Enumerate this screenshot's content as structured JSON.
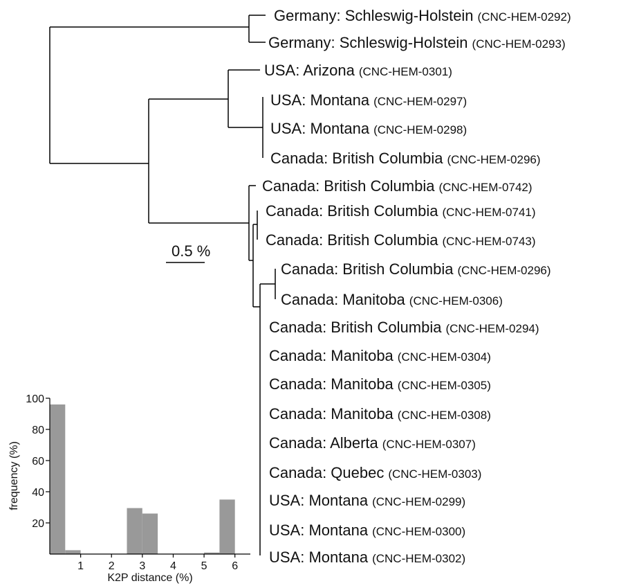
{
  "tree": {
    "scale_bar_label": "0.5 %",
    "leaves": [
      {
        "location": "Germany: Schleswig-Holstein",
        "code": "(CNC-HEM-0292)"
      },
      {
        "location": "Germany: Schleswig-Holstein",
        "code": "(CNC-HEM-0293)"
      },
      {
        "location": "USA: Arizona",
        "code": "(CNC-HEM-0301)"
      },
      {
        "location": "USA: Montana",
        "code": "(CNC-HEM-0297)"
      },
      {
        "location": "USA: Montana",
        "code": "(CNC-HEM-0298)"
      },
      {
        "location": "Canada: British Columbia",
        "code": "(CNC-HEM-0296)"
      },
      {
        "location": "Canada: British Columbia",
        "code": "(CNC-HEM-0742)"
      },
      {
        "location": "Canada: British Columbia",
        "code": "(CNC-HEM-0741)"
      },
      {
        "location": "Canada: British Columbia",
        "code": "(CNC-HEM-0743)"
      },
      {
        "location": "Canada: British Columbia",
        "code": "(CNC-HEM-0296)"
      },
      {
        "location": "Canada: Manitoba",
        "code": "(CNC-HEM-0306)"
      },
      {
        "location": "Canada: British Columbia",
        "code": "(CNC-HEM-0294)"
      },
      {
        "location": "Canada: Manitoba",
        "code": "(CNC-HEM-0304)"
      },
      {
        "location": "Canada: Manitoba",
        "code": "(CNC-HEM-0305)"
      },
      {
        "location": "Canada: Manitoba",
        "code": "(CNC-HEM-0308)"
      },
      {
        "location": "Canada: Alberta",
        "code": "(CNC-HEM-0307)"
      },
      {
        "location": "Canada: Quebec",
        "code": "(CNC-HEM-0303)"
      },
      {
        "location": "USA: Montana",
        "code": "(CNC-HEM-0299)"
      },
      {
        "location": "USA: Montana",
        "code": "(CNC-HEM-0300)"
      },
      {
        "location": "USA: Montana",
        "code": "(CNC-HEM-0302)"
      }
    ]
  },
  "chart_data": {
    "type": "bar",
    "xlabel": "K2P distance (%)",
    "ylabel": "frequency (%)",
    "x_tick_labels": [
      "1",
      "2",
      "3",
      "4",
      "5",
      "6"
    ],
    "y_tick_labels": [
      "20",
      "40",
      "60",
      "80",
      "100"
    ],
    "xlim": [
      0,
      6.5
    ],
    "ylim": [
      0,
      100
    ],
    "bar_width": 0.5,
    "bar_color": "#999999",
    "grid": false,
    "bins": [
      {
        "x_start": 0.0,
        "value": 96
      },
      {
        "x_start": 0.5,
        "value": 2.5
      },
      {
        "x_start": 1.0,
        "value": 0
      },
      {
        "x_start": 1.5,
        "value": 0
      },
      {
        "x_start": 2.0,
        "value": 0
      },
      {
        "x_start": 2.5,
        "value": 29.5
      },
      {
        "x_start": 3.0,
        "value": 26
      },
      {
        "x_start": 3.5,
        "value": 0
      },
      {
        "x_start": 4.0,
        "value": 0
      },
      {
        "x_start": 4.5,
        "value": 0
      },
      {
        "x_start": 5.0,
        "value": 1
      },
      {
        "x_start": 5.5,
        "value": 35
      }
    ]
  }
}
